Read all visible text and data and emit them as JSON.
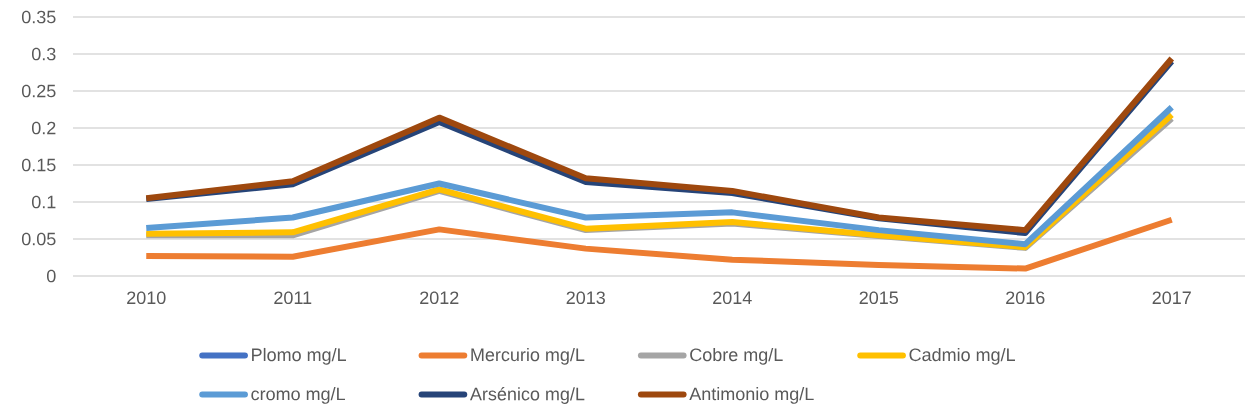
{
  "chart_data": {
    "type": "line",
    "categories": [
      "2010",
      "2011",
      "2012",
      "2013",
      "2014",
      "2015",
      "2016",
      "2017"
    ],
    "series": [
      {
        "name": "Plomo mg/L",
        "color": "#4472c4",
        "values": [
          null,
          null,
          null,
          null,
          null,
          null,
          null,
          null
        ]
      },
      {
        "name": "Mercurio mg/L",
        "color": "#ed7d31",
        "values": [
          0.027,
          0.026,
          0.063,
          0.037,
          0.022,
          0.015,
          0.01,
          0.076
        ]
      },
      {
        "name": "Cobre mg/L",
        "color": "#a5a5a5",
        "values": [
          0.055,
          0.055,
          0.115,
          0.062,
          0.071,
          0.054,
          0.038,
          0.213
        ]
      },
      {
        "name": "Cadmio mg/L",
        "color": "#ffc000",
        "values": [
          0.057,
          0.059,
          0.117,
          0.064,
          0.073,
          0.055,
          0.039,
          0.218
        ]
      },
      {
        "name": "cromo mg/L",
        "color": "#5b9bd5",
        "values": [
          0.065,
          0.079,
          0.125,
          0.079,
          0.086,
          0.062,
          0.043,
          0.228
        ]
      },
      {
        "name": "Arsénico mg/L",
        "color": "#264478",
        "values": [
          0.104,
          0.124,
          0.208,
          0.127,
          0.112,
          0.078,
          0.058,
          0.29
        ]
      },
      {
        "name": "Antimonio mg/L",
        "color": "#9e480e",
        "values": [
          0.105,
          0.128,
          0.214,
          0.132,
          0.115,
          0.079,
          0.062,
          0.294
        ]
      }
    ],
    "ylim": [
      0,
      0.35
    ],
    "yticks": [
      0,
      0.05,
      0.1,
      0.15,
      0.2,
      0.25,
      0.3,
      0.35
    ],
    "grid": "y",
    "legend": "bottom",
    "line_style": "solid"
  }
}
